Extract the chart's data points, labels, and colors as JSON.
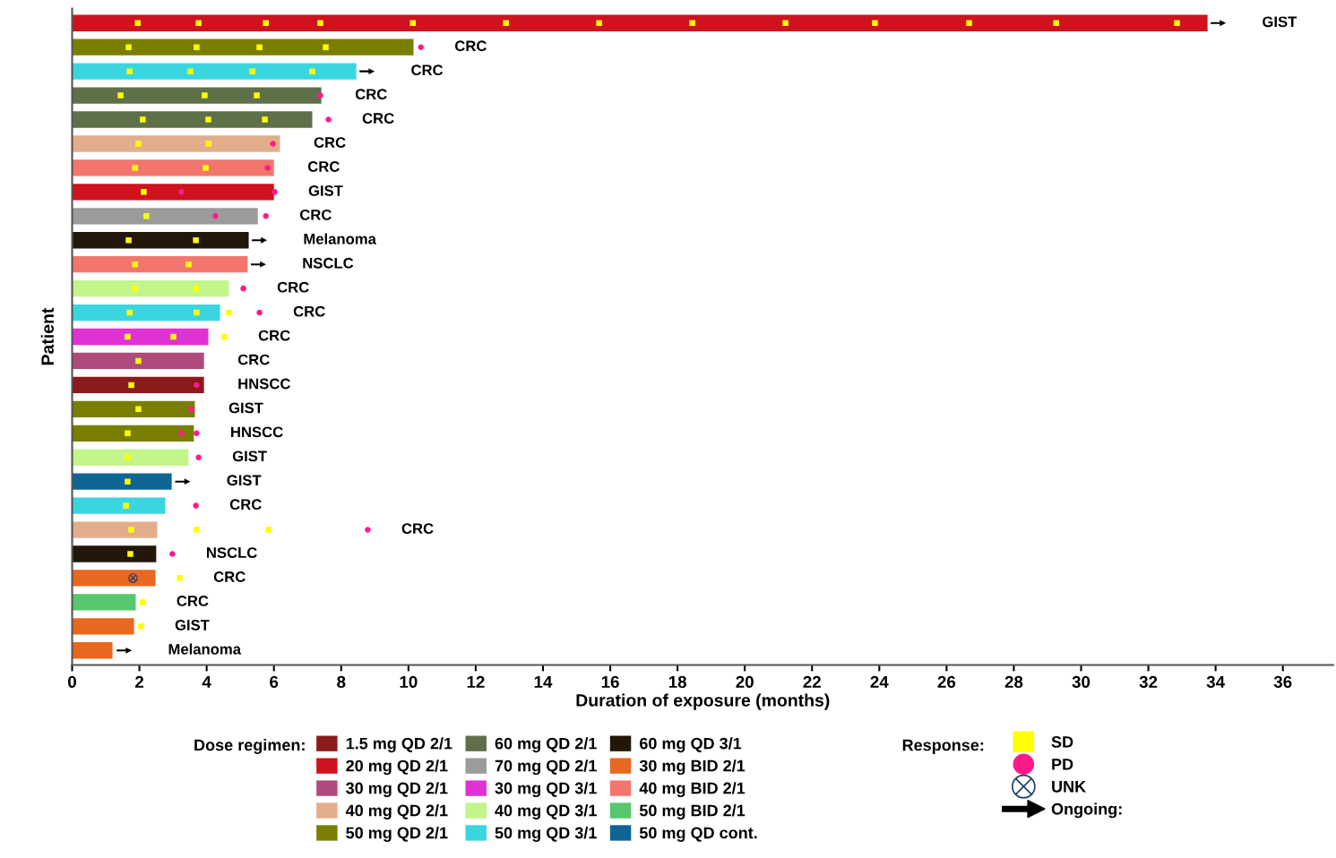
{
  "chart_data": {
    "type": "bar",
    "orientation": "horizontal",
    "xlabel": "Duration of exposure (months)",
    "ylabel": "Patient",
    "legend_title": "Dose regimen:",
    "legend": "bottom",
    "grid": false,
    "tick_labels": "x",
    "categories": [
      null,
      null,
      null,
      null,
      null,
      null,
      null,
      null,
      null,
      null,
      null,
      null,
      null,
      null,
      null,
      null,
      null,
      null,
      null,
      null,
      null,
      null,
      null,
      null,
      null,
      null,
      null
    ],
    "xlim": [
      0,
      37.5
    ],
    "xticks": [
      0,
      2,
      4,
      6,
      8,
      10,
      12,
      14,
      16,
      18,
      20,
      22,
      24,
      26,
      28,
      30,
      32,
      34,
      36
    ],
    "value_labels": [
      "GIST",
      "CRC",
      "CRC",
      "CRC",
      "CRC",
      "CRC",
      "CRC",
      "GIST",
      "CRC",
      "Melanoma",
      "NSCLC",
      "CRC",
      "CRC",
      "CRC",
      "CRC",
      "HNSCC",
      "GIST",
      "HNSCC",
      "GIST",
      "GIST",
      "CRC",
      "CRC",
      "NSCLC",
      "CRC",
      "CRC",
      "GIST",
      "Melanoma"
    ],
    "annotations": [
      "Response:"
    ],
    "series": [
      {
        "name": "1.5 mg QD 2/1",
        "color": "#8b1a1a",
        "values": [
          null,
          null,
          null,
          null,
          null,
          null,
          null,
          null,
          null,
          null,
          null,
          null,
          null,
          null,
          null,
          3.92,
          null,
          null,
          null,
          null,
          null,
          null,
          null,
          null,
          null,
          null,
          null
        ]
      },
      {
        "name": "20 mg QD 2/1",
        "color": "#d0121e",
        "values": [
          33.76,
          null,
          null,
          null,
          null,
          null,
          null,
          6.0,
          null,
          null,
          null,
          null,
          null,
          null,
          null,
          null,
          null,
          null,
          null,
          null,
          null,
          null,
          null,
          null,
          null,
          null,
          null
        ]
      },
      {
        "name": "30 mg QD 2/1",
        "color": "#b04a7c",
        "values": [
          null,
          null,
          null,
          null,
          null,
          null,
          null,
          null,
          null,
          null,
          null,
          null,
          null,
          null,
          3.92,
          null,
          null,
          null,
          null,
          null,
          null,
          null,
          null,
          null,
          null,
          null,
          null
        ]
      },
      {
        "name": "40 mg QD 2/1",
        "color": "#e3ad8c",
        "values": [
          null,
          null,
          null,
          null,
          null,
          6.18,
          null,
          null,
          null,
          null,
          null,
          null,
          null,
          null,
          null,
          null,
          null,
          null,
          null,
          null,
          null,
          2.53,
          null,
          null,
          null,
          null,
          null
        ]
      },
      {
        "name": "50 mg QD 2/1",
        "color": "#7a7e00",
        "values": [
          null,
          10.15,
          null,
          null,
          null,
          null,
          null,
          null,
          null,
          null,
          null,
          null,
          null,
          null,
          null,
          null,
          3.65,
          3.62,
          null,
          null,
          null,
          null,
          null,
          null,
          null,
          null,
          null
        ]
      },
      {
        "name": "60 mg QD 2/1",
        "color": "#5e7048",
        "values": [
          null,
          null,
          null,
          7.41,
          7.14,
          null,
          null,
          null,
          null,
          null,
          null,
          null,
          null,
          null,
          null,
          null,
          null,
          null,
          null,
          null,
          null,
          null,
          null,
          null,
          null,
          null,
          null
        ]
      },
      {
        "name": "70 mg QD 2/1",
        "color": "#9b9b9b",
        "values": [
          null,
          null,
          null,
          null,
          null,
          null,
          null,
          null,
          5.52,
          null,
          null,
          null,
          null,
          null,
          null,
          null,
          null,
          null,
          null,
          null,
          null,
          null,
          null,
          null,
          null,
          null,
          null
        ]
      },
      {
        "name": "30 mg QD 3/1",
        "color": "#e031d5",
        "values": [
          null,
          null,
          null,
          null,
          null,
          null,
          null,
          null,
          null,
          null,
          null,
          null,
          null,
          4.05,
          null,
          null,
          null,
          null,
          null,
          null,
          null,
          null,
          null,
          null,
          null,
          null,
          null
        ]
      },
      {
        "name": "40 mg QD 3/1",
        "color": "#c2f58a",
        "values": [
          null,
          null,
          null,
          null,
          null,
          null,
          null,
          null,
          null,
          null,
          null,
          4.66,
          null,
          null,
          null,
          null,
          null,
          null,
          3.46,
          null,
          null,
          null,
          null,
          null,
          null,
          null,
          null
        ]
      },
      {
        "name": "50 mg QD 3/1",
        "color": "#3ad6e0",
        "values": [
          null,
          null,
          8.45,
          null,
          null,
          null,
          null,
          null,
          null,
          null,
          null,
          null,
          4.4,
          null,
          null,
          null,
          null,
          null,
          null,
          null,
          2.77,
          null,
          null,
          null,
          null,
          null,
          null
        ]
      },
      {
        "name": "60 mg QD 3/1",
        "color": "#23170a",
        "values": [
          null,
          null,
          null,
          null,
          null,
          null,
          null,
          null,
          null,
          5.25,
          null,
          null,
          null,
          null,
          null,
          null,
          null,
          null,
          null,
          null,
          null,
          null,
          2.5,
          null,
          null,
          null,
          null
        ]
      },
      {
        "name": "30 mg BID 2/1",
        "color": "#e8681f",
        "values": [
          null,
          null,
          null,
          null,
          null,
          null,
          null,
          null,
          null,
          null,
          null,
          null,
          null,
          null,
          null,
          null,
          null,
          null,
          null,
          null,
          null,
          null,
          null,
          2.48,
          null,
          1.84,
          1.2
        ]
      },
      {
        "name": "40 mg BID 2/1",
        "color": "#f2766e",
        "values": [
          null,
          null,
          null,
          null,
          null,
          null,
          6.0,
          null,
          null,
          null,
          5.22,
          null,
          null,
          null,
          null,
          null,
          null,
          null,
          null,
          null,
          null,
          null,
          null,
          null,
          null,
          null,
          null
        ]
      },
      {
        "name": "50 mg BID 2/1",
        "color": "#56c76e",
        "values": [
          null,
          null,
          null,
          null,
          null,
          null,
          null,
          null,
          null,
          null,
          null,
          null,
          null,
          null,
          null,
          null,
          null,
          null,
          null,
          null,
          null,
          null,
          null,
          null,
          1.89,
          null,
          null
        ]
      },
      {
        "name": "50 mg QD cont.",
        "color": "#0f6594",
        "values": [
          null,
          null,
          null,
          null,
          null,
          null,
          null,
          null,
          null,
          null,
          null,
          null,
          null,
          null,
          null,
          null,
          null,
          null,
          null,
          2.96,
          null,
          null,
          null,
          null,
          null,
          null,
          null
        ]
      },
      {
        "name": "SD",
        "type": "scatter",
        "marker": "square",
        "color": "#ffff00",
        "values": [
          1.95,
          1.68,
          1.71,
          1.44,
          2.1,
          1.97,
          1.87,
          2.13,
          2.21,
          1.68,
          1.87,
          1.87,
          1.71,
          1.65,
          1.97,
          1.76,
          1.97,
          1.65,
          1.65,
          1.65,
          1.6,
          1.76,
          1.73,
          3.2,
          2.1,
          2.05,
          null
        ]
      },
      {
        "type": "scatter",
        "marker": "square",
        "color": "#ffff00",
        "values": [
          3.76,
          3.7,
          3.52,
          3.94,
          4.05,
          4.05,
          3.97,
          null,
          null,
          3.68,
          3.46,
          3.68,
          3.7,
          3.01,
          null,
          null,
          null,
          null,
          null,
          null,
          null,
          3.7,
          null,
          null,
          null,
          null,
          null
        ]
      },
      {
        "type": "scatter",
        "marker": "square",
        "color": "#ffff00",
        "values": [
          5.76,
          5.57,
          5.36,
          5.49,
          5.73,
          null,
          null,
          null,
          null,
          null,
          null,
          null,
          4.66,
          4.53,
          null,
          null,
          null,
          null,
          null,
          null,
          null,
          5.84,
          null,
          null,
          null,
          null,
          null
        ]
      },
      {
        "type": "scatter",
        "marker": "square",
        "color": "#ffff00",
        "values": [
          7.38,
          7.54,
          7.14,
          null,
          null,
          null,
          null,
          null,
          null,
          null,
          null,
          null,
          null,
          null,
          null,
          null,
          null,
          null,
          null,
          null,
          null,
          null,
          null,
          null,
          null,
          null,
          null
        ]
      },
      {
        "type": "scatter",
        "marker": "square",
        "color": "#ffff00",
        "values": [
          10.13,
          null,
          null,
          null,
          null,
          null,
          null,
          null,
          null,
          null,
          null,
          null,
          null,
          null,
          null,
          null,
          null,
          null,
          null,
          null,
          null,
          null,
          null,
          null,
          null,
          null,
          null
        ]
      },
      {
        "type": "scatter",
        "marker": "square",
        "color": "#ffff00",
        "values": [
          12.9,
          null,
          null,
          null,
          null,
          null,
          null,
          null,
          null,
          null,
          null,
          null,
          null,
          null,
          null,
          null,
          null,
          null,
          null,
          null,
          null,
          null,
          null,
          null,
          null,
          null,
          null
        ]
      },
      {
        "type": "scatter",
        "marker": "square",
        "color": "#ffff00",
        "values": [
          15.67,
          null,
          null,
          null,
          null,
          null,
          null,
          null,
          null,
          null,
          null,
          null,
          null,
          null,
          null,
          null,
          null,
          null,
          null,
          null,
          null,
          null,
          null,
          null,
          null,
          null,
          null
        ]
      },
      {
        "type": "scatter",
        "marker": "square",
        "color": "#ffff00",
        "values": [
          18.44,
          null,
          null,
          null,
          null,
          null,
          null,
          null,
          null,
          null,
          null,
          null,
          null,
          null,
          null,
          null,
          null,
          null,
          null,
          null,
          null,
          null,
          null,
          null,
          null,
          null,
          null
        ]
      },
      {
        "type": "scatter",
        "marker": "square",
        "color": "#ffff00",
        "values": [
          21.21,
          null,
          null,
          null,
          null,
          null,
          null,
          null,
          null,
          null,
          null,
          null,
          null,
          null,
          null,
          null,
          null,
          null,
          null,
          null,
          null,
          null,
          null,
          null,
          null,
          null,
          null
        ]
      },
      {
        "type": "scatter",
        "marker": "square",
        "color": "#ffff00",
        "values": [
          23.87,
          null,
          null,
          null,
          null,
          null,
          null,
          null,
          null,
          null,
          null,
          null,
          null,
          null,
          null,
          null,
          null,
          null,
          null,
          null,
          null,
          null,
          null,
          null,
          null,
          null,
          null
        ]
      },
      {
        "type": "scatter",
        "marker": "square",
        "color": "#ffff00",
        "values": [
          26.67,
          null,
          null,
          null,
          null,
          null,
          null,
          null,
          null,
          null,
          null,
          null,
          null,
          null,
          null,
          null,
          null,
          null,
          null,
          null,
          null,
          null,
          null,
          null,
          null,
          null,
          null
        ]
      },
      {
        "type": "scatter",
        "marker": "square",
        "color": "#ffff00",
        "values": [
          29.26,
          null,
          null,
          null,
          null,
          null,
          null,
          null,
          null,
          null,
          null,
          null,
          null,
          null,
          null,
          null,
          null,
          null,
          null,
          null,
          null,
          null,
          null,
          null,
          null,
          null,
          null
        ]
      },
      {
        "type": "scatter",
        "marker": "square",
        "color": "#ffff00",
        "values": [
          32.85,
          null,
          null,
          null,
          null,
          null,
          null,
          null,
          null,
          null,
          null,
          null,
          null,
          null,
          null,
          null,
          null,
          null,
          null,
          null,
          null,
          null,
          null,
          null,
          null,
          null,
          null
        ]
      },
      {
        "name": "PD",
        "type": "scatter",
        "marker": "circle",
        "color": "#ff1a8c",
        "values": [
          null,
          10.37,
          null,
          7.38,
          7.62,
          5.97,
          5.81,
          3.25,
          4.26,
          null,
          null,
          5.09,
          5.57,
          null,
          null,
          3.7,
          3.54,
          3.25,
          3.76,
          null,
          3.68,
          8.79,
          2.98,
          null,
          null,
          null,
          null
        ]
      },
      {
        "type": "scatter",
        "marker": "circle",
        "color": "#ff1a8c",
        "values": [
          null,
          null,
          null,
          null,
          null,
          null,
          null,
          6.02,
          5.76,
          null,
          null,
          null,
          null,
          null,
          null,
          null,
          null,
          3.7,
          null,
          null,
          null,
          null,
          null,
          null,
          null,
          null,
          null
        ]
      },
      {
        "name": "UNK",
        "type": "scatter",
        "marker": "cross",
        "color": "#1f3a6e",
        "values": [
          null,
          null,
          null,
          null,
          null,
          null,
          null,
          null,
          null,
          null,
          null,
          null,
          null,
          null,
          null,
          null,
          null,
          null,
          null,
          null,
          null,
          null,
          null,
          1.81,
          null,
          null,
          null
        ]
      },
      {
        "name": "Ongoing:",
        "type": "scatter",
        "marker": "triangle",
        "color": "#000000",
        "values": [
          34.08,
          null,
          8.77,
          null,
          null,
          null,
          null,
          null,
          null,
          5.57,
          5.54,
          null,
          null,
          null,
          null,
          null,
          null,
          null,
          null,
          3.29,
          null,
          null,
          null,
          null,
          null,
          null,
          1.55
        ]
      }
    ]
  }
}
